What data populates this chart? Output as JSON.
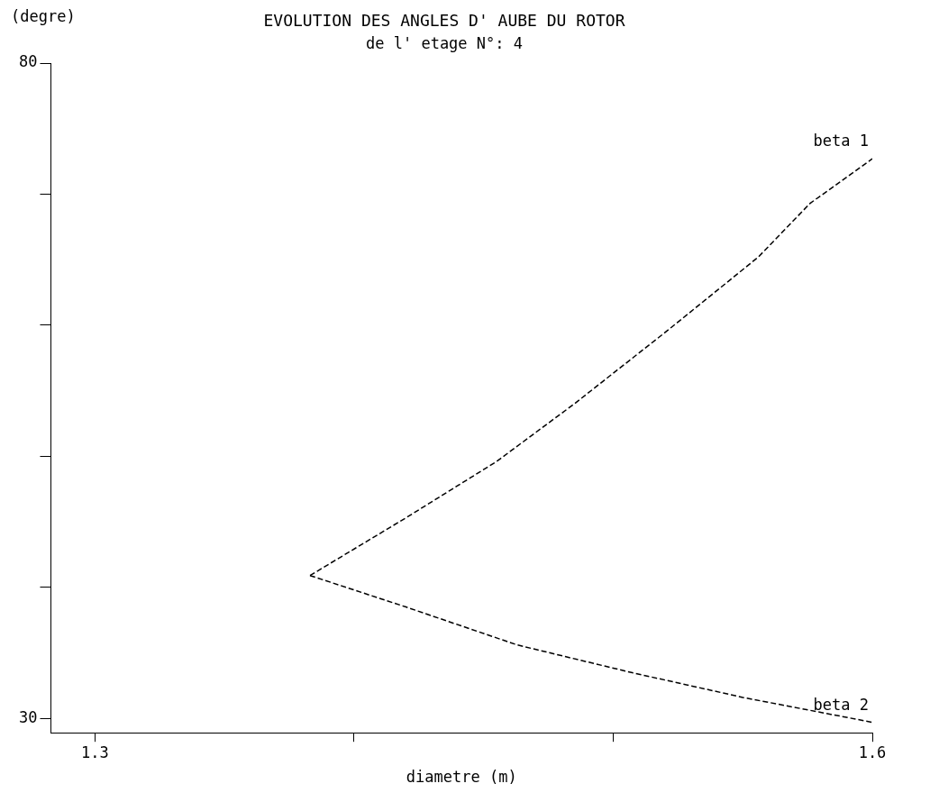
{
  "chart_data": {
    "type": "line",
    "title": "EVOLUTION DES ANGLES D' AUBE DU ROTOR",
    "subtitle": "de l' etage N°: 4",
    "xlabel": "diametre (m)",
    "ylabel": "(degre)",
    "xlim": [
      1.283,
      1.6
    ],
    "xticks": [
      1.3,
      {
        "value": 1.4,
        "label": null
      },
      {
        "value": 1.5,
        "label": null
      },
      1.6
    ],
    "ylim": [
      28.9,
      80
    ],
    "yticks": [
      {
        "value": 30,
        "label": "30"
      },
      {
        "value": 40,
        "label": null
      },
      {
        "value": 50,
        "label": null
      },
      {
        "value": 60,
        "label": null
      },
      {
        "value": 70,
        "label": null
      },
      {
        "value": 80,
        "label": "80"
      }
    ],
    "grid": false,
    "legend": false,
    "marker": "none",
    "line_style": "dashed",
    "series": [
      {
        "name": "beta 1",
        "color": "#000000",
        "x": [
          1.383,
          1.42,
          1.455,
          1.485,
          1.521,
          1.556,
          1.576,
          1.6
        ],
        "values": [
          40.9,
          45.3,
          49.6,
          54.0,
          59.6,
          65.2,
          69.3,
          72.7
        ]
      },
      {
        "name": "beta 2",
        "color": "#000000",
        "x": [
          1.383,
          1.42,
          1.463,
          1.507,
          1.55,
          1.6
        ],
        "values": [
          40.9,
          38.5,
          35.6,
          33.5,
          31.6,
          29.7
        ]
      }
    ]
  }
}
